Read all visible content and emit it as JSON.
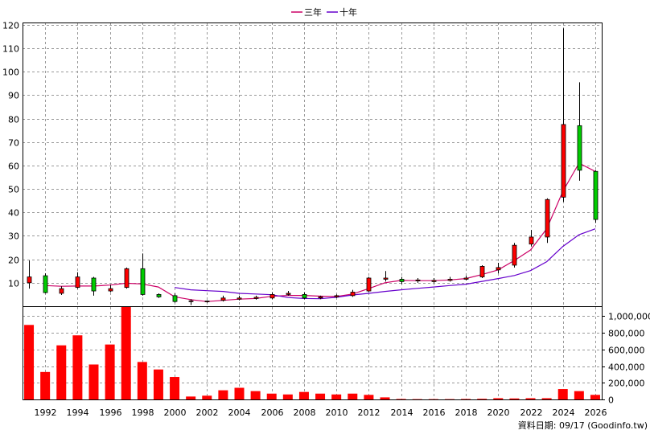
{
  "legend": {
    "items": [
      {
        "label": "三年",
        "color": "#cc0066"
      },
      {
        "label": "十年",
        "color": "#6600cc"
      }
    ]
  },
  "footer": {
    "text": "資料日期: 09/17 (Goodinfo.tw)"
  },
  "colors": {
    "up": "#ff0000",
    "down": "#00cc00",
    "volume": "#ff0000",
    "grid": "#999999"
  },
  "chart_data": [
    {
      "type": "candlestick",
      "x_ticks": [
        1992,
        1994,
        1996,
        1998,
        2000,
        2002,
        2004,
        2006,
        2008,
        2010,
        2012,
        2014,
        2016,
        2018,
        2020,
        2022,
        2024,
        2026
      ],
      "xlim": [
        1990.6,
        2026.4
      ],
      "ylim": [
        0,
        121
      ],
      "y_ticks": [
        10,
        20,
        30,
        40,
        50,
        60,
        70,
        80,
        90,
        100,
        110,
        120
      ],
      "grid": true,
      "candles": [
        {
          "x": 1991,
          "open": 10.0,
          "close": 12.5,
          "high": 19.5,
          "low": 7.5
        },
        {
          "x": 1992,
          "open": 13.0,
          "close": 5.8,
          "high": 14.0,
          "low": 5.5
        },
        {
          "x": 1993,
          "open": 5.5,
          "close": 7.5,
          "high": 8.5,
          "low": 4.8
        },
        {
          "x": 1994,
          "open": 8.0,
          "close": 12.5,
          "high": 14.5,
          "low": 7.5
        },
        {
          "x": 1995,
          "open": 12.0,
          "close": 6.5,
          "high": 12.5,
          "low": 4.5
        },
        {
          "x": 1996,
          "open": 6.5,
          "close": 7.5,
          "high": 9.0,
          "low": 6.0
        },
        {
          "x": 1997,
          "open": 8.0,
          "close": 16.0,
          "high": 16.5,
          "low": 7.5
        },
        {
          "x": 1998,
          "open": 16.0,
          "close": 5.0,
          "high": 22.5,
          "low": 4.5
        },
        {
          "x": 1999,
          "open": 5.0,
          "close": 4.0,
          "high": 5.5,
          "low": 3.5
        },
        {
          "x": 2000,
          "open": 4.5,
          "close": 2.0,
          "high": 5.5,
          "low": 1.5
        },
        {
          "x": 2001,
          "open": 2.0,
          "close": 2.3,
          "high": 3.0,
          "low": 0.5
        },
        {
          "x": 2002,
          "open": 2.0,
          "close": 2.2,
          "high": 2.5,
          "low": 1.5
        },
        {
          "x": 2003,
          "open": 2.5,
          "close": 3.5,
          "high": 4.5,
          "low": 2.0
        },
        {
          "x": 2004,
          "open": 3.0,
          "close": 3.5,
          "high": 4.5,
          "low": 2.5
        },
        {
          "x": 2005,
          "open": 3.3,
          "close": 3.8,
          "high": 4.5,
          "low": 2.8
        },
        {
          "x": 2006,
          "open": 3.5,
          "close": 5.0,
          "high": 6.0,
          "low": 3.0
        },
        {
          "x": 2007,
          "open": 5.0,
          "close": 5.5,
          "high": 6.5,
          "low": 4.5
        },
        {
          "x": 2008,
          "open": 5.0,
          "close": 3.5,
          "high": 6.0,
          "low": 3.0
        },
        {
          "x": 2009,
          "open": 3.5,
          "close": 4.0,
          "high": 4.5,
          "low": 3.0
        },
        {
          "x": 2010,
          "open": 4.0,
          "close": 4.5,
          "high": 5.0,
          "low": 3.5
        },
        {
          "x": 2011,
          "open": 4.5,
          "close": 6.0,
          "high": 7.0,
          "low": 4.0
        },
        {
          "x": 2012,
          "open": 6.5,
          "close": 12.0,
          "high": 12.5,
          "low": 6.0
        },
        {
          "x": 2013,
          "open": 11.5,
          "close": 12.0,
          "high": 15.0,
          "low": 10.5
        },
        {
          "x": 2014,
          "open": 11.5,
          "close": 10.5,
          "high": 12.5,
          "low": 9.5
        },
        {
          "x": 2015,
          "open": 10.8,
          "close": 11.2,
          "high": 12.0,
          "low": 10.0
        },
        {
          "x": 2016,
          "open": 10.5,
          "close": 11.0,
          "high": 12.0,
          "low": 10.0
        },
        {
          "x": 2017,
          "open": 11.0,
          "close": 11.5,
          "high": 12.5,
          "low": 10.5
        },
        {
          "x": 2018,
          "open": 11.5,
          "close": 12.0,
          "high": 13.0,
          "low": 11.0
        },
        {
          "x": 2019,
          "open": 12.5,
          "close": 17.0,
          "high": 17.5,
          "low": 12.0
        },
        {
          "x": 2020,
          "open": 15.5,
          "close": 16.5,
          "high": 18.5,
          "low": 14.0
        },
        {
          "x": 2021,
          "open": 17.5,
          "close": 26.0,
          "high": 27.0,
          "low": 16.5
        },
        {
          "x": 2022,
          "open": 26.5,
          "close": 29.5,
          "high": 32.5,
          "low": 25.5
        },
        {
          "x": 2023,
          "open": 29.5,
          "close": 45.5,
          "high": 46.0,
          "low": 27.0
        },
        {
          "x": 2024,
          "open": 46.5,
          "close": 77.5,
          "high": 118.5,
          "low": 44.5
        },
        {
          "x": 2025,
          "open": 77.0,
          "close": 58.0,
          "high": 95.5,
          "low": 53.5
        },
        {
          "x": 2026,
          "open": 57.5,
          "close": 37.0,
          "high": 58.0,
          "low": 35.5
        }
      ],
      "series": [
        {
          "name": "三年",
          "color": "#cc0066",
          "points": [
            [
              1992,
              8.8
            ],
            [
              1993,
              8.5
            ],
            [
              1994,
              8.6
            ],
            [
              1995,
              8.6
            ],
            [
              1996,
              9.0
            ],
            [
              1997,
              9.8
            ],
            [
              1998,
              9.5
            ],
            [
              1999,
              8.2
            ],
            [
              2000,
              4.0
            ],
            [
              2001,
              2.8
            ],
            [
              2002,
              2.0
            ],
            [
              2003,
              2.5
            ],
            [
              2004,
              3.0
            ],
            [
              2005,
              3.3
            ],
            [
              2006,
              4.2
            ],
            [
              2007,
              4.6
            ],
            [
              2008,
              4.6
            ],
            [
              2009,
              4.3
            ],
            [
              2010,
              4.1
            ],
            [
              2011,
              5.2
            ],
            [
              2012,
              7.5
            ],
            [
              2013,
              10.0
            ],
            [
              2014,
              11.0
            ],
            [
              2015,
              10.9
            ],
            [
              2016,
              10.9
            ],
            [
              2017,
              11.2
            ],
            [
              2018,
              11.8
            ],
            [
              2019,
              13.5
            ],
            [
              2020,
              15.5
            ],
            [
              2021,
              19.5
            ],
            [
              2022,
              24.0
            ],
            [
              2023,
              33.0
            ],
            [
              2024,
              49.0
            ],
            [
              2025,
              61.0
            ],
            [
              2026,
              57.5
            ]
          ]
        },
        {
          "name": "十年",
          "color": "#6600cc",
          "points": [
            [
              2000,
              8.0
            ],
            [
              2001,
              7.0
            ],
            [
              2002,
              6.6
            ],
            [
              2003,
              6.3
            ],
            [
              2004,
              5.5
            ],
            [
              2005,
              5.2
            ],
            [
              2006,
              4.9
            ],
            [
              2007,
              3.7
            ],
            [
              2008,
              3.3
            ],
            [
              2009,
              3.2
            ],
            [
              2010,
              3.8
            ],
            [
              2011,
              4.8
            ],
            [
              2012,
              5.5
            ],
            [
              2013,
              6.3
            ],
            [
              2014,
              7.0
            ],
            [
              2015,
              7.6
            ],
            [
              2016,
              8.2
            ],
            [
              2017,
              8.8
            ],
            [
              2018,
              9.4
            ],
            [
              2019,
              10.6
            ],
            [
              2020,
              11.8
            ],
            [
              2021,
              13.1
            ],
            [
              2022,
              15.2
            ],
            [
              2023,
              19.0
            ],
            [
              2024,
              25.5
            ],
            [
              2025,
              30.5
            ],
            [
              2026,
              33.0
            ]
          ]
        }
      ]
    },
    {
      "type": "bar",
      "ylim": [
        0,
        1120000
      ],
      "y_ticks": [
        0,
        200000,
        400000,
        600000,
        800000,
        1000000
      ],
      "y_tick_labels": [
        "0",
        "200,000",
        "400,000",
        "600,000",
        "800,000",
        "1,000,000"
      ],
      "grid": true,
      "x": [
        1991,
        1992,
        1993,
        1994,
        1995,
        1996,
        1997,
        1998,
        1999,
        2000,
        2001,
        2002,
        2003,
        2004,
        2005,
        2006,
        2007,
        2008,
        2009,
        2010,
        2011,
        2012,
        2013,
        2014,
        2015,
        2016,
        2017,
        2018,
        2019,
        2020,
        2021,
        2022,
        2023,
        2024,
        2025,
        2026
      ],
      "values": [
        895000,
        330000,
        650000,
        770000,
        420000,
        660000,
        1120000,
        450000,
        360000,
        270000,
        35000,
        45000,
        110000,
        140000,
        100000,
        70000,
        60000,
        90000,
        70000,
        60000,
        70000,
        55000,
        25000,
        6000,
        4000,
        4000,
        4000,
        6000,
        8000,
        15000,
        12000,
        15000,
        15000,
        125000,
        100000,
        55000
      ]
    }
  ]
}
